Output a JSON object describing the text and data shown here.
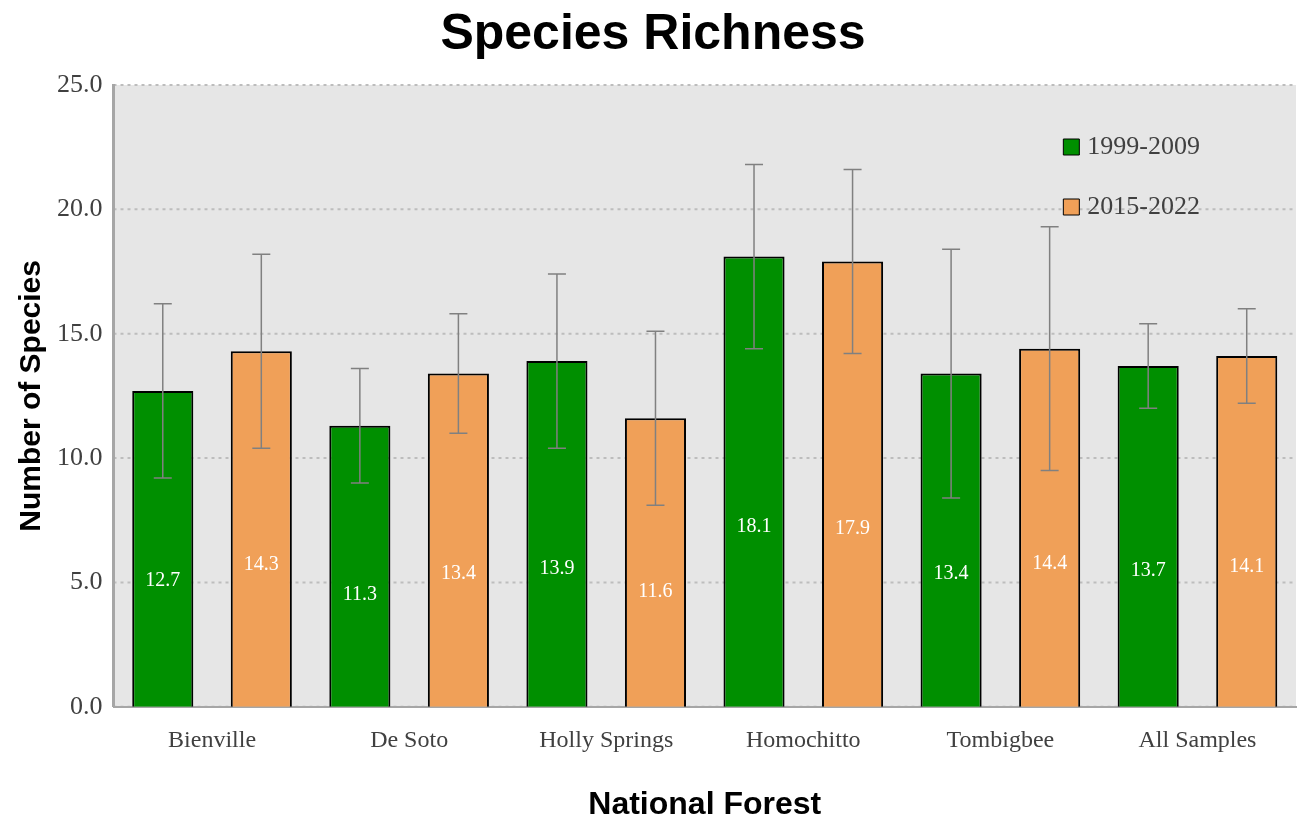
{
  "chart_data": {
    "type": "bar",
    "title": "Species Richness",
    "xlabel": "National Forest",
    "ylabel": "Number of Species",
    "categories": [
      "Bienville",
      "De Soto",
      "Holly Springs",
      "Homochitto",
      "Tombigbee",
      "All Samples"
    ],
    "series": [
      {
        "name": "1999-2009",
        "color": "#008f00",
        "values": [
          12.7,
          11.3,
          13.9,
          18.1,
          13.4,
          13.7
        ],
        "errors": [
          3.5,
          2.3,
          3.5,
          3.7,
          5.0,
          1.7
        ]
      },
      {
        "name": "2015-2022",
        "color": "#f0a058",
        "values": [
          14.3,
          13.4,
          11.6,
          17.9,
          14.4,
          14.1
        ],
        "errors": [
          3.9,
          2.4,
          3.5,
          3.7,
          4.9,
          1.9
        ]
      }
    ],
    "ylim": [
      0,
      25
    ],
    "yticks": [
      {
        "value": 0,
        "label": "0.0"
      },
      {
        "value": 5,
        "label": "5.0"
      },
      {
        "value": 10,
        "label": "10.0"
      },
      {
        "value": 15,
        "label": "15.0"
      },
      {
        "value": 20,
        "label": "20.0"
      },
      {
        "value": 25,
        "label": "25.0"
      }
    ],
    "grid": "y",
    "legend": "top right",
    "data_labels": true
  }
}
